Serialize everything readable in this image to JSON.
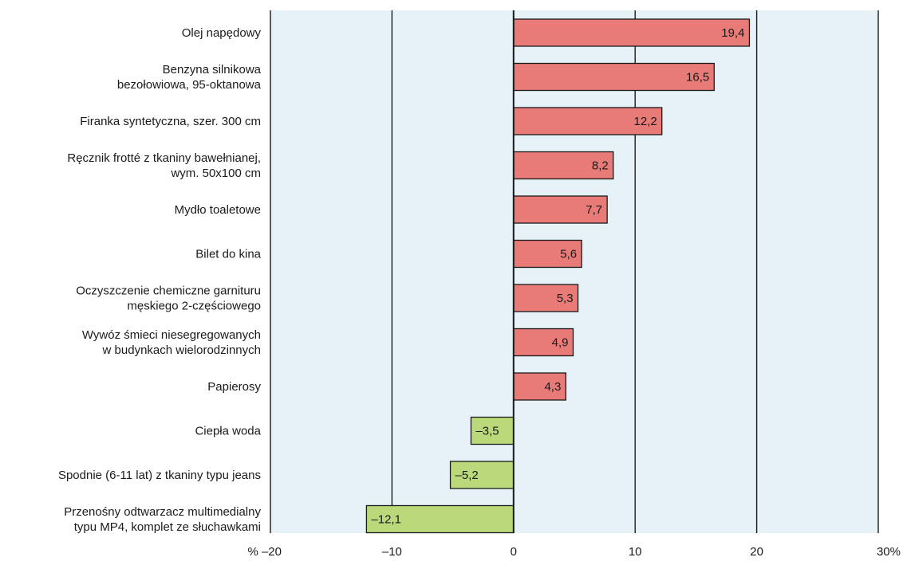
{
  "chart_data": {
    "type": "bar",
    "orientation": "horizontal",
    "categories": [
      [
        "Olej napędowy"
      ],
      [
        "Benzyna silnikowa",
        "bezołowiowa, 95-oktanowa"
      ],
      [
        "Firanka syntetyczna, szer. 300 cm"
      ],
      [
        "Ręcznik frotté z tkaniny bawełnianej,",
        "wym. 50x100 cm"
      ],
      [
        "Mydło toaletowe"
      ],
      [
        "Bilet do kina"
      ],
      [
        "Oczyszczenie chemiczne garnituru",
        "męskiego 2-częściowego"
      ],
      [
        "Wywóz śmieci niesegregowanych",
        "w budynkach wielorodzinnych"
      ],
      [
        "Papierosy"
      ],
      [
        "Ciepła woda"
      ],
      [
        "Spodnie (6-11 lat) z tkaniny typu jeans"
      ],
      [
        "Przenośny odtwarzacz multimedialny",
        "typu MP4, komplet ze słuchawkami"
      ]
    ],
    "values": [
      19.4,
      16.5,
      12.2,
      8.2,
      7.7,
      5.6,
      5.3,
      4.9,
      4.3,
      -3.5,
      -5.2,
      -12.1
    ],
    "value_labels": [
      "19,4",
      "16,5",
      "12,2",
      "8,2",
      "7,7",
      "5,6",
      "5,3",
      "4,9",
      "4,3",
      "–3,5",
      "–5,2",
      "–12,1"
    ],
    "xlim": [
      -20,
      30
    ],
    "x_ticks": [
      -20,
      -10,
      0,
      10,
      20,
      30
    ],
    "x_tick_labels": [
      "% –20",
      "–10",
      "0",
      "10",
      "20",
      "30%"
    ],
    "grid": true,
    "colors": {
      "positive": "#e87a78",
      "negative": "#b9d97a",
      "plot_background": "#e6f2f8",
      "bar_stroke": "#1a1a1a",
      "grid": "#1a1a1a"
    }
  }
}
